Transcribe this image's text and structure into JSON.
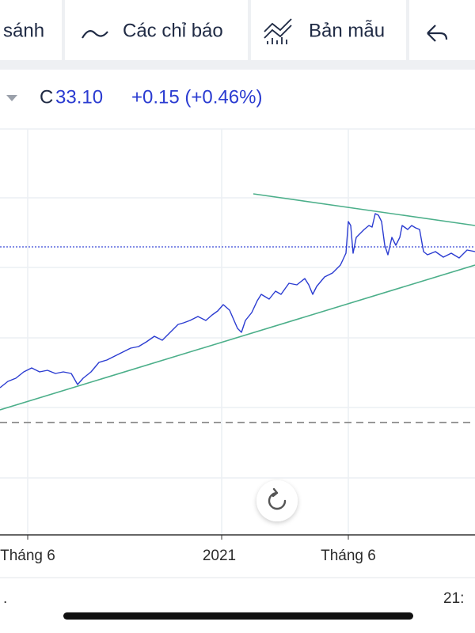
{
  "toolbar": {
    "compare": "sánh",
    "indicators": "Các chỉ báo",
    "templates": "Bản mẫu"
  },
  "legend": {
    "close_label": "C",
    "close": "33.10",
    "change": "+0.15 (+0.46%)"
  },
  "x_axis": {
    "labels": [
      "Tháng 6",
      "2021",
      "Tháng 6"
    ]
  },
  "footer": {
    "left": ".",
    "right": "21:"
  }
}
